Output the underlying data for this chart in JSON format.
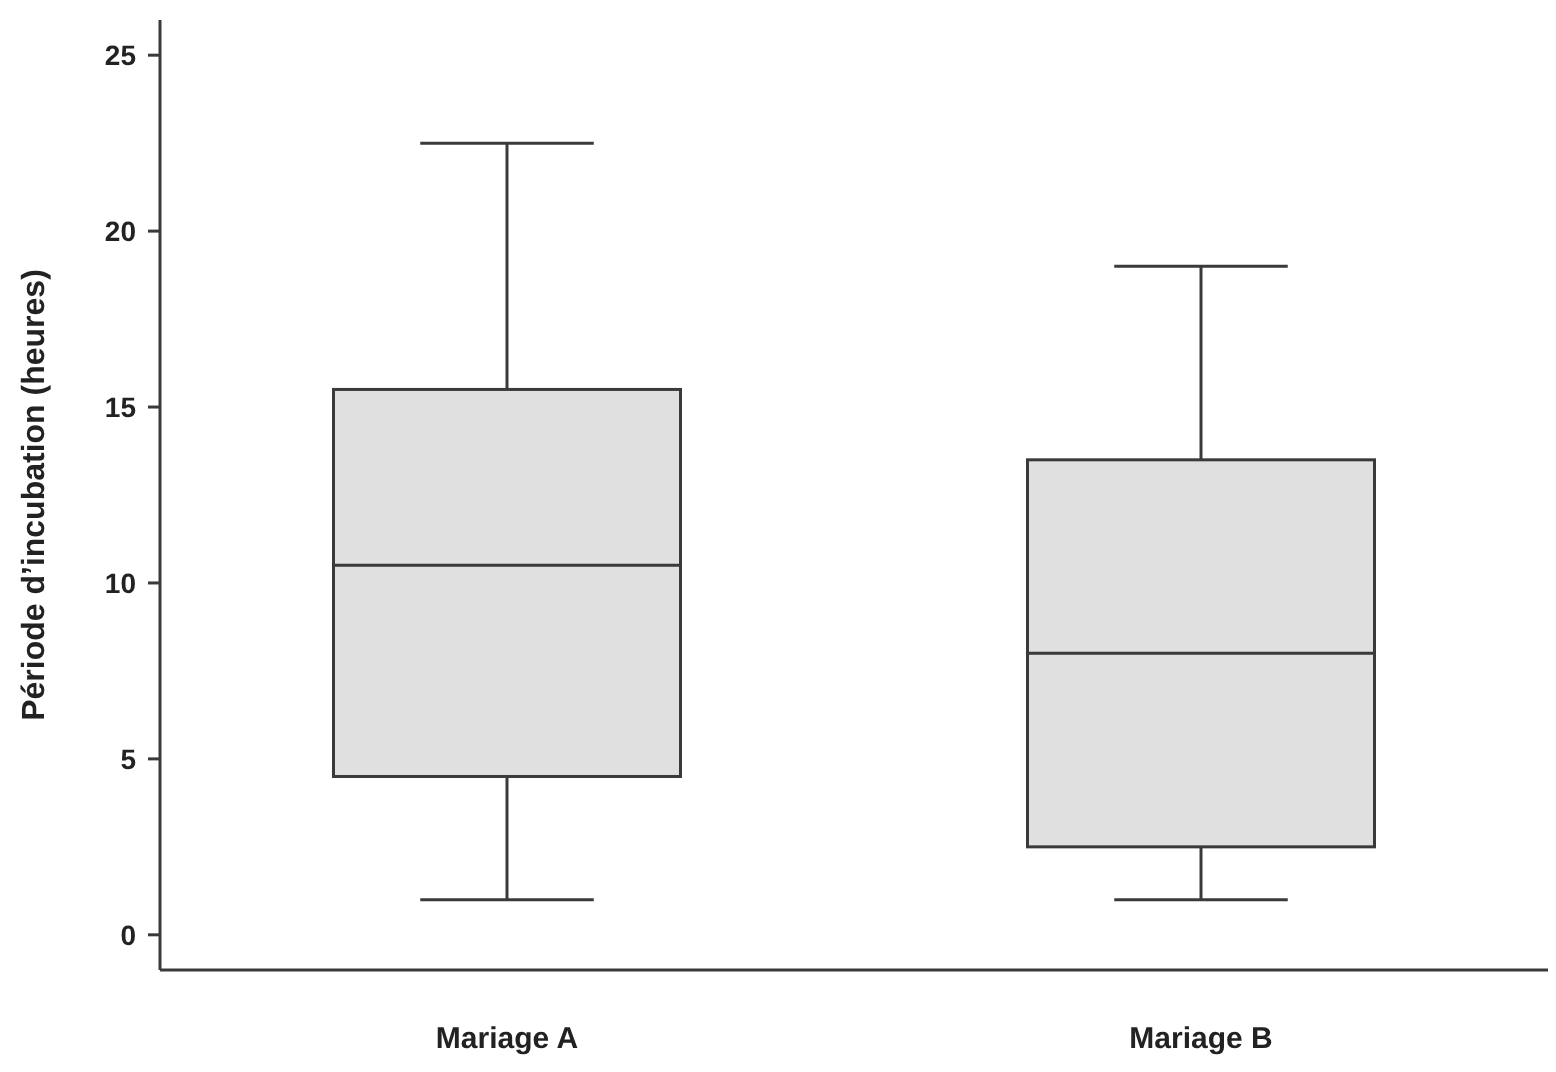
{
  "chart_data": {
    "type": "box",
    "ylabel": "Période d’incubation (heures)",
    "categories": [
      "Mariage A",
      "Mariage B"
    ],
    "boxes": [
      {
        "low": 1,
        "q1": 4.5,
        "median": 10.5,
        "q3": 15.5,
        "high": 22.5
      },
      {
        "low": 1,
        "q1": 2.5,
        "median": 8,
        "q3": 13.5,
        "high": 19
      }
    ],
    "color": "#e0e0e0",
    "ylim": [
      -1,
      26
    ],
    "yticks": [
      0,
      5,
      10,
      15,
      20,
      25
    ],
    "grid": false
  }
}
